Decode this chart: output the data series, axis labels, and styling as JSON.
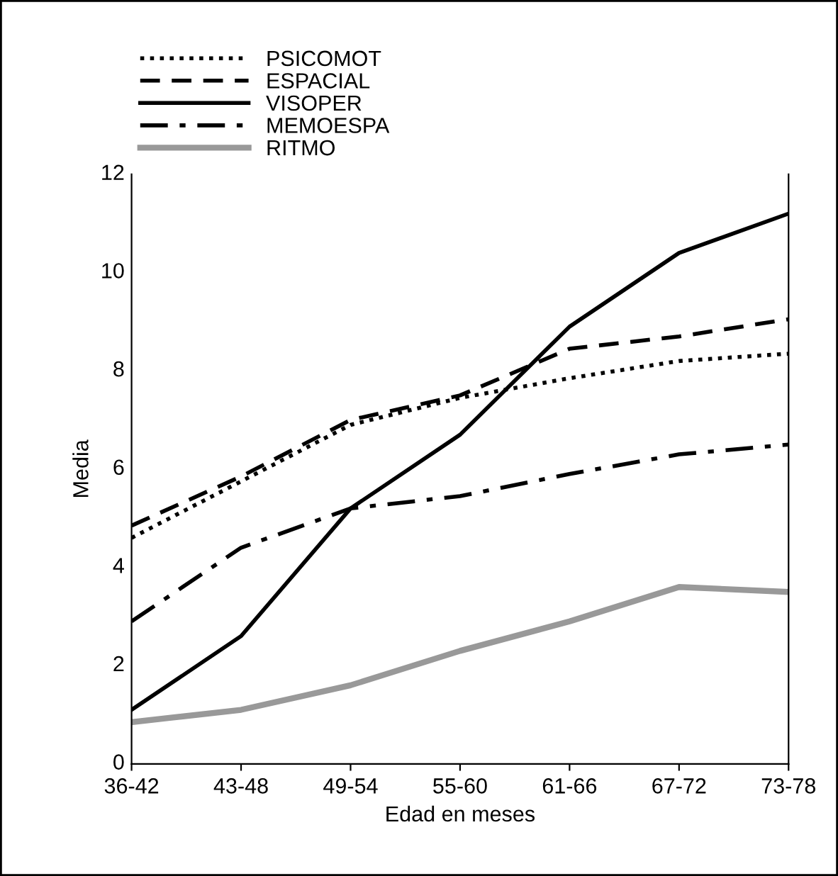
{
  "chart_data": {
    "type": "line",
    "xlabel": "Edad en meses",
    "ylabel": "Media",
    "categories": [
      "36-42",
      "43-48",
      "49-54",
      "55-60",
      "61-66",
      "67-72",
      "73-78"
    ],
    "series": [
      {
        "name": "PSICOMOT",
        "color": "#000000",
        "line_style": "dotted",
        "values": [
          4.6,
          5.75,
          6.9,
          7.45,
          7.85,
          8.2,
          8.35
        ]
      },
      {
        "name": "ESPACIAL",
        "color": "#000000",
        "line_style": "dashed",
        "values": [
          4.85,
          5.85,
          7.0,
          7.5,
          8.45,
          8.7,
          9.05
        ]
      },
      {
        "name": "VISOPER",
        "color": "#000000",
        "line_style": "solid",
        "values": [
          1.1,
          2.6,
          5.2,
          6.7,
          8.9,
          10.4,
          11.2
        ]
      },
      {
        "name": "MEMOESPA",
        "color": "#000000",
        "line_style": "dashdot",
        "values": [
          2.9,
          4.4,
          5.2,
          5.45,
          5.9,
          6.3,
          6.5
        ]
      },
      {
        "name": "RITMO",
        "color": "#999999",
        "line_style": "solid",
        "values": [
          0.85,
          1.1,
          1.6,
          2.3,
          2.9,
          3.6,
          3.5
        ]
      }
    ],
    "ylim": [
      0,
      12
    ],
    "yticks": [
      0,
      2,
      4,
      6,
      8,
      10,
      12
    ],
    "grid": false,
    "legend": "top left",
    "marker": "none"
  }
}
